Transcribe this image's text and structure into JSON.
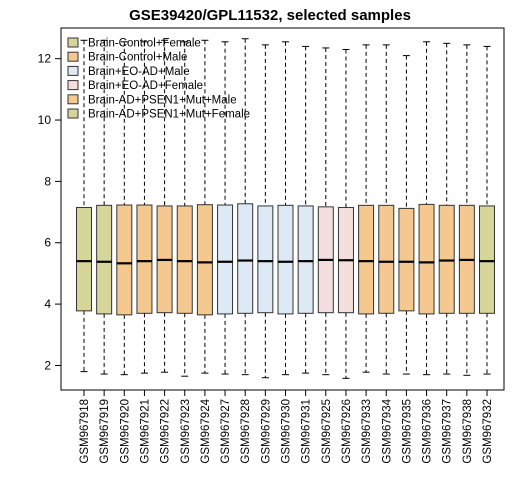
{
  "chart_data": {
    "type": "box",
    "title": "GSE39420/GPL11532, selected samples",
    "xlabel": "",
    "ylabel": "",
    "ylim": [
      1.2,
      13.0
    ],
    "yticks": [
      2,
      4,
      6,
      8,
      10,
      12
    ],
    "grid": false,
    "legend_position": "top-left",
    "legend": [
      {
        "label": "Brain-Control+Female",
        "color": "#d6d69b"
      },
      {
        "label": "Brain-Control+Male",
        "color": "#f4c88e"
      },
      {
        "label": "Brain+EO-AD+Male",
        "color": "#dde9f4"
      },
      {
        "label": "Brain+EO-AD+Female",
        "color": "#f5dede"
      },
      {
        "label": "Brain-AD+PSEN1+Mut+Male",
        "color": "#f4c88e"
      },
      {
        "label": "Brain-AD+PSEN1+Mut+Female",
        "color": "#d6d69b"
      }
    ],
    "boxes": [
      {
        "sample": "GSM967918",
        "group": 0,
        "min": 1.8,
        "q1": 3.78,
        "median": 5.4,
        "q3": 7.15,
        "max": 12.6
      },
      {
        "sample": "GSM967919",
        "group": 0,
        "min": 1.72,
        "q1": 3.68,
        "median": 5.38,
        "q3": 7.22,
        "max": 12.6
      },
      {
        "sample": "GSM967920",
        "group": 1,
        "min": 1.7,
        "q1": 3.65,
        "median": 5.33,
        "q3": 7.23,
        "max": 12.55
      },
      {
        "sample": "GSM967921",
        "group": 1,
        "min": 1.75,
        "q1": 3.7,
        "median": 5.4,
        "q3": 7.23,
        "max": 12.55
      },
      {
        "sample": "GSM967922",
        "group": 1,
        "min": 1.78,
        "q1": 3.72,
        "median": 5.44,
        "q3": 7.2,
        "max": 12.6
      },
      {
        "sample": "GSM967923",
        "group": 1,
        "min": 1.65,
        "q1": 3.7,
        "median": 5.4,
        "q3": 7.2,
        "max": 12.55
      },
      {
        "sample": "GSM967924",
        "group": 1,
        "min": 1.75,
        "q1": 3.65,
        "median": 5.36,
        "q3": 7.24,
        "max": 12.6
      },
      {
        "sample": "GSM967927",
        "group": 2,
        "min": 1.72,
        "q1": 3.68,
        "median": 5.38,
        "q3": 7.23,
        "max": 12.55
      },
      {
        "sample": "GSM967928",
        "group": 2,
        "min": 1.7,
        "q1": 3.7,
        "median": 5.42,
        "q3": 7.27,
        "max": 12.65
      },
      {
        "sample": "GSM967929",
        "group": 2,
        "min": 1.6,
        "q1": 3.72,
        "median": 5.4,
        "q3": 7.2,
        "max": 12.45
      },
      {
        "sample": "GSM967930",
        "group": 2,
        "min": 1.7,
        "q1": 3.68,
        "median": 5.38,
        "q3": 7.22,
        "max": 12.55
      },
      {
        "sample": "GSM967931",
        "group": 2,
        "min": 1.75,
        "q1": 3.7,
        "median": 5.4,
        "q3": 7.2,
        "max": 12.4
      },
      {
        "sample": "GSM967925",
        "group": 3,
        "min": 1.7,
        "q1": 3.72,
        "median": 5.44,
        "q3": 7.17,
        "max": 12.35
      },
      {
        "sample": "GSM967926",
        "group": 3,
        "min": 1.58,
        "q1": 3.72,
        "median": 5.43,
        "q3": 7.15,
        "max": 12.3
      },
      {
        "sample": "GSM967933",
        "group": 4,
        "min": 1.78,
        "q1": 3.68,
        "median": 5.4,
        "q3": 7.22,
        "max": 12.45
      },
      {
        "sample": "GSM967934",
        "group": 4,
        "min": 1.72,
        "q1": 3.7,
        "median": 5.38,
        "q3": 7.22,
        "max": 12.45
      },
      {
        "sample": "GSM967935",
        "group": 4,
        "min": 1.72,
        "q1": 3.78,
        "median": 5.38,
        "q3": 7.12,
        "max": 12.1
      },
      {
        "sample": "GSM967936",
        "group": 4,
        "min": 1.7,
        "q1": 3.68,
        "median": 5.36,
        "q3": 7.25,
        "max": 12.55
      },
      {
        "sample": "GSM967937",
        "group": 4,
        "min": 1.72,
        "q1": 3.7,
        "median": 5.42,
        "q3": 7.22,
        "max": 12.5
      },
      {
        "sample": "GSM967938",
        "group": 4,
        "min": 1.68,
        "q1": 3.7,
        "median": 5.44,
        "q3": 7.22,
        "max": 12.45
      },
      {
        "sample": "GSM967932",
        "group": 5,
        "min": 1.72,
        "q1": 3.7,
        "median": 5.4,
        "q3": 7.2,
        "max": 12.4
      }
    ]
  }
}
